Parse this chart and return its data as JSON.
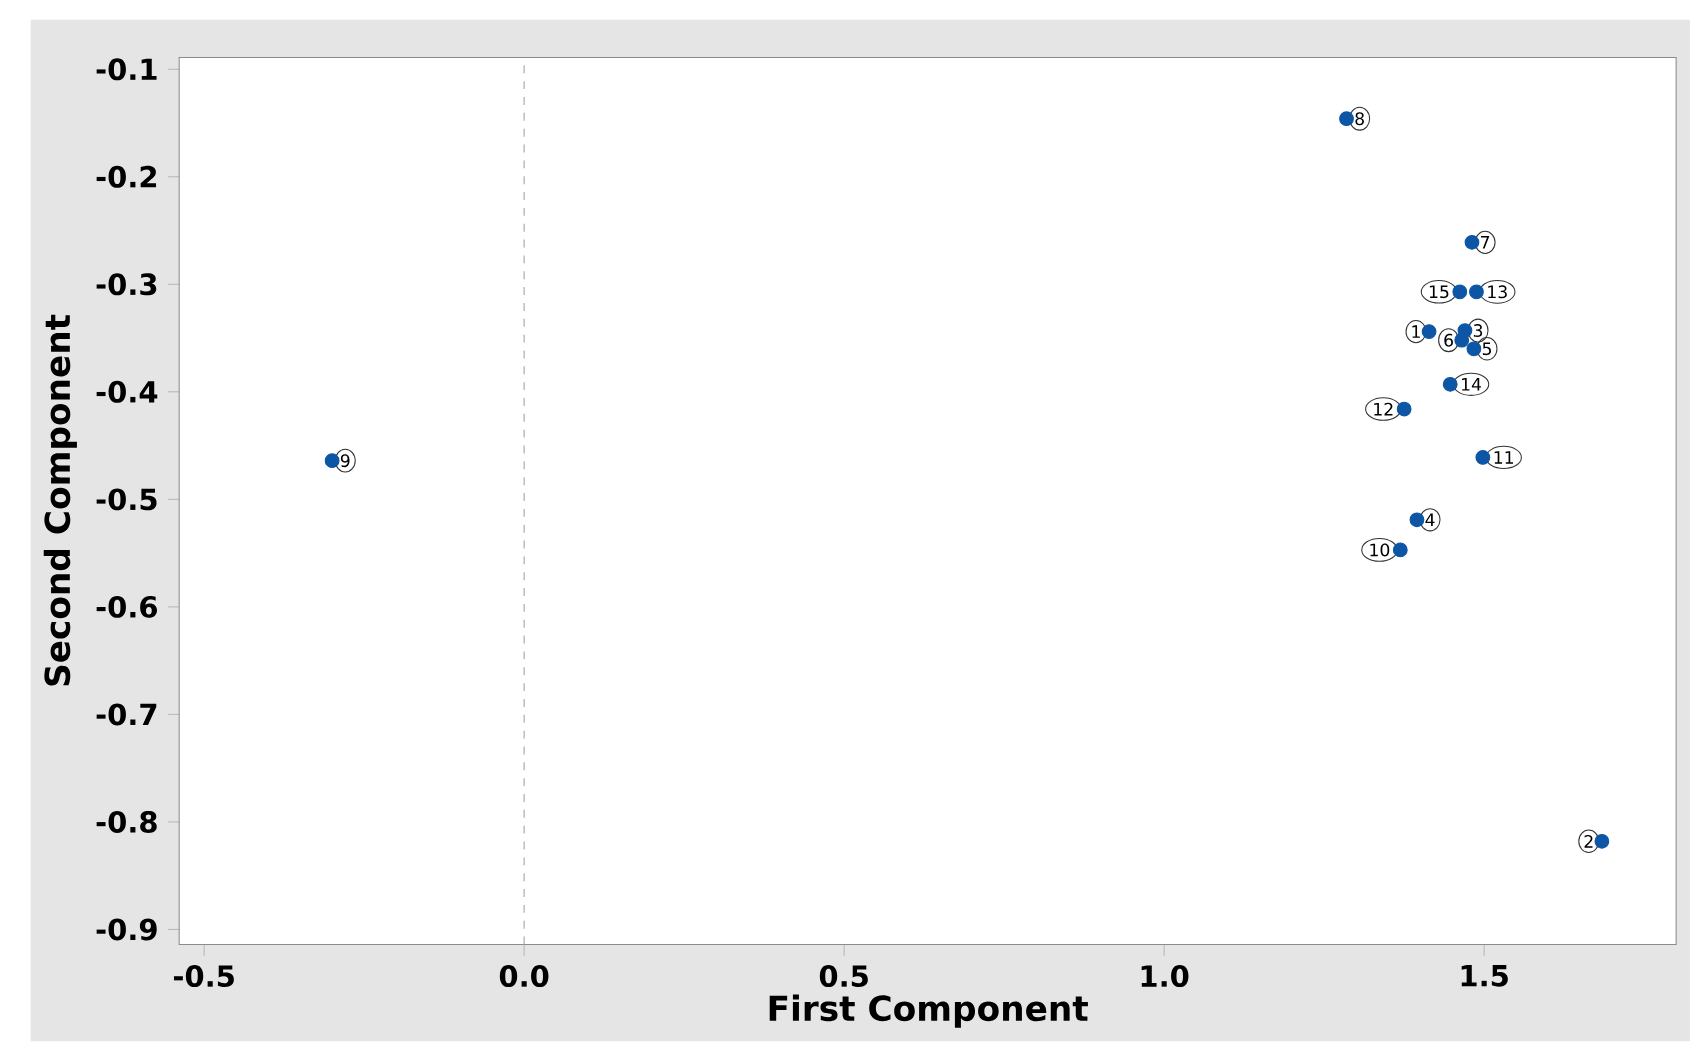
{
  "chart_data": {
    "type": "scatter",
    "xlabel": "First Component",
    "ylabel": "Second Component",
    "xlim": [
      -0.539,
      1.8
    ],
    "ylim": [
      -0.914,
      -0.089
    ],
    "xticks": [
      -0.5,
      {
        "value": 0,
        "label": "0.0"
      },
      0.5,
      {
        "value": 1,
        "label": "1.0"
      },
      1.5
    ],
    "yticks": [
      -0.1,
      -0.2,
      -0.3,
      -0.4,
      -0.5,
      -0.6,
      -0.7,
      -0.8,
      -0.9
    ],
    "grid": false,
    "marker": "circle",
    "series": [
      {
        "color": "#0d56a6",
        "x": [
          1.414,
          1.684,
          1.47,
          1.395,
          1.484,
          1.465,
          1.481,
          1.285,
          -0.3,
          1.369,
          1.498,
          1.375,
          1.488,
          1.447,
          1.462
        ],
        "values": [
          -0.344,
          -0.818,
          -0.343,
          -0.519,
          -0.36,
          -0.352,
          -0.261,
          -0.146,
          -0.464,
          -0.547,
          -0.461,
          -0.416,
          -0.307,
          -0.393,
          -0.307
        ]
      }
    ],
    "ref_lines": [
      {
        "axis": "x",
        "value": 0,
        "color": "#a0a0a0",
        "line_style": "dashed"
      }
    ],
    "annotations": [
      {
        "text": "1",
        "x": 1.414,
        "y": -0.344
      },
      {
        "text": "2",
        "x": 1.684,
        "y": -0.818
      },
      {
        "text": "3",
        "x": 1.47,
        "y": -0.343
      },
      {
        "text": "4",
        "x": 1.395,
        "y": -0.519
      },
      {
        "text": "5",
        "x": 1.484,
        "y": -0.36
      },
      {
        "text": "6",
        "x": 1.465,
        "y": -0.352
      },
      {
        "text": "7",
        "x": 1.481,
        "y": -0.261
      },
      {
        "text": "8",
        "x": 1.285,
        "y": -0.146
      },
      {
        "text": "9",
        "x": -0.3,
        "y": -0.464
      },
      {
        "text": "10",
        "x": 1.369,
        "y": -0.547
      },
      {
        "text": "11",
        "x": 1.498,
        "y": -0.461
      },
      {
        "text": "12",
        "x": 1.375,
        "y": -0.416
      },
      {
        "text": "13",
        "x": 1.488,
        "y": -0.307
      },
      {
        "text": "14",
        "x": 1.447,
        "y": -0.393
      },
      {
        "text": "15",
        "x": 1.462,
        "y": -0.307
      }
    ]
  }
}
